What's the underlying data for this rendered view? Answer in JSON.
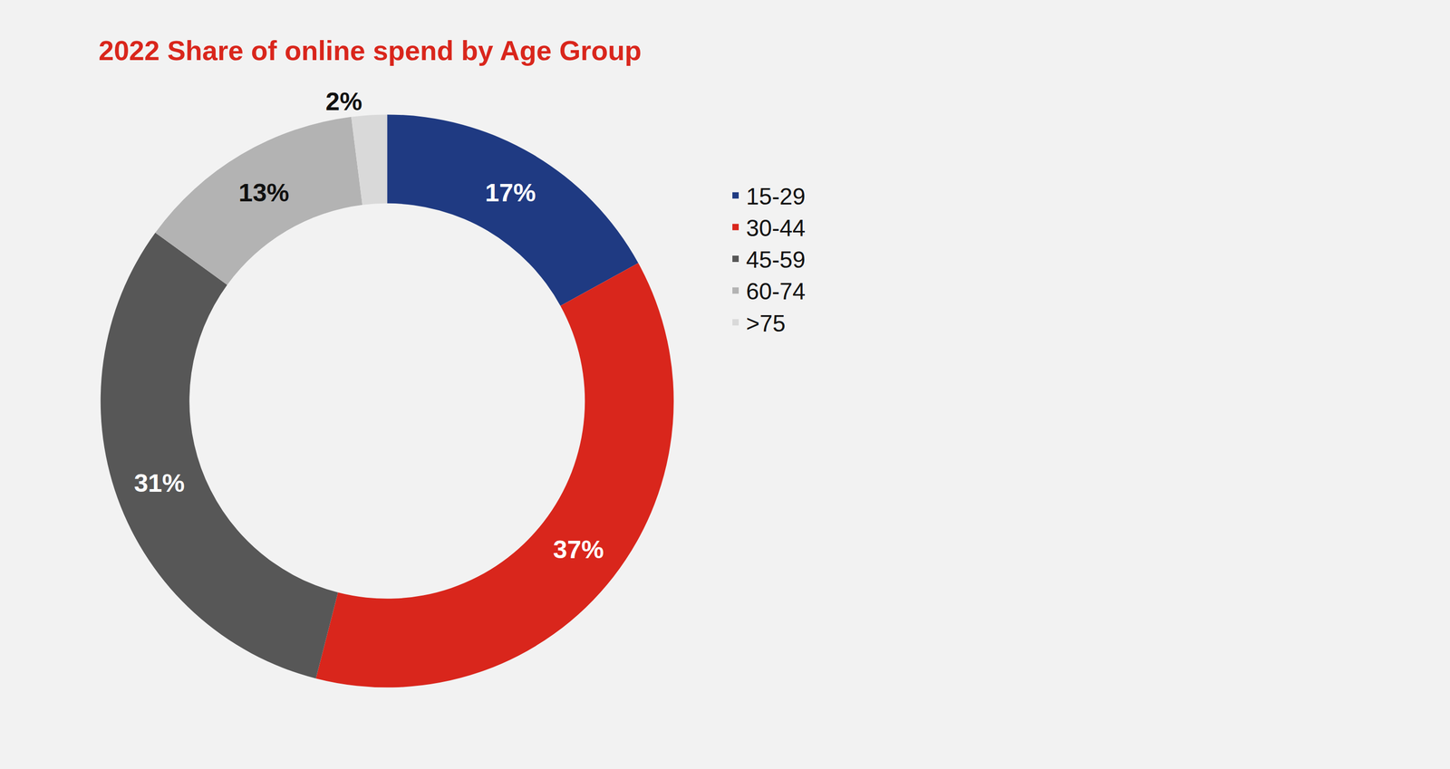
{
  "chart_data": {
    "type": "pie",
    "title": "2022 Share of online spend by Age Group",
    "categories": [
      "15-29",
      "30-44",
      "45-59",
      "60-74",
      ">75"
    ],
    "values": [
      17,
      37,
      31,
      13,
      2
    ],
    "value_labels": [
      "17%",
      "37%",
      "31%",
      "13%",
      "2%"
    ],
    "colors": [
      "#1f3a82",
      "#d9261c",
      "#575757",
      "#b3b3b3",
      "#d9d9d9"
    ],
    "data_labels": true,
    "legend": "right"
  }
}
